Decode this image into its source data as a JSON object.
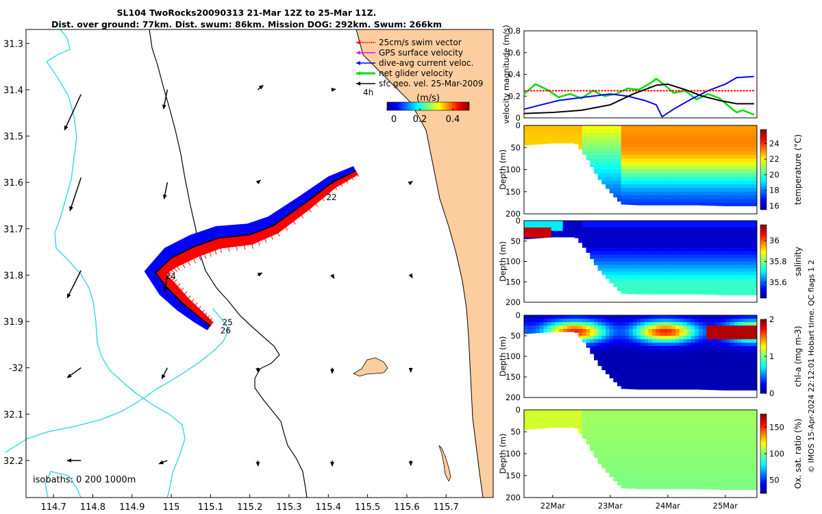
{
  "header": {
    "title_line1": "SL104 TwoRocks20090313 21-Mar 12Z to 25-Mar 11Z.",
    "title_line2": "Dist. over ground: 77km. Dist. swum: 86km. Mission DOG: 292km. Swum: 266km"
  },
  "credit": "© IMOS 15-Apr-2024 22:12:01 Hobart time. QC flags 1  2",
  "colors": {
    "land": "#fbcd9f",
    "swim": "#ff0000",
    "current": "#0000ff",
    "net": "#00dd00",
    "isobath": "#3ddbe0",
    "track": "#000000"
  },
  "chart_data": [
    {
      "type": "map",
      "name": "glider-track-map",
      "xlim": [
        114.63,
        115.82
      ],
      "ylim": [
        -32.28,
        -31.27
      ],
      "xticks": [
        114.7,
        114.8,
        114.9,
        115,
        115.1,
        115.2,
        115.3,
        115.4,
        115.5,
        115.6,
        115.7
      ],
      "yticks": [
        -31.3,
        -31.4,
        -31.5,
        -31.6,
        -31.7,
        -31.8,
        -31.9,
        -32,
        -32.1,
        -32.2
      ],
      "xtick_labels": [
        "114.7",
        "114.8",
        "114.9",
        "115",
        "115.1",
        "115.2",
        "115.3",
        "115.4",
        "115.5",
        "115.6",
        "115.7"
      ],
      "ytick_labels": [
        "31.3",
        "31.4",
        "31.5",
        "31.6",
        "31.7",
        "31.8",
        "31.9",
        "-32",
        "32.1",
        "32.2"
      ],
      "legend": [
        {
          "label": "25cm/s swim vector",
          "color": "#ff0000"
        },
        {
          "label": "GPS surface velocity",
          "color": "#ff00ff"
        },
        {
          "label": "dive-avg current veloc.",
          "color": "#0000ff"
        },
        {
          "label": "net glider velocity",
          "color": "#00dd00"
        },
        {
          "label": "sfc geo. vel. 25-Mar-2009",
          "color": "#000000"
        }
      ],
      "time_label": "4h",
      "colorbar": {
        "label": "(m/s)",
        "ticks": [
          "0",
          "0.2",
          "0.4"
        ],
        "range": [
          0,
          0.5
        ]
      },
      "isobath_note": "isobaths: 0   200  1000m",
      "track": [
        [
          115.47,
          -31.575
        ],
        [
          115.41,
          -31.6
        ],
        [
          115.34,
          -31.645
        ],
        [
          115.26,
          -31.693
        ],
        [
          115.2,
          -31.713
        ],
        [
          115.12,
          -31.72
        ],
        [
          115.06,
          -31.738
        ],
        [
          115.0,
          -31.763
        ],
        [
          114.96,
          -31.795
        ],
        [
          114.99,
          -31.828
        ],
        [
          115.03,
          -31.862
        ],
        [
          115.07,
          -31.89
        ],
        [
          115.1,
          -31.91
        ]
      ],
      "day_labels": [
        {
          "text": "22",
          "lon": 115.395,
          "lat": -31.638
        },
        {
          "text": "24",
          "lon": 114.985,
          "lat": -31.808
        },
        {
          "text": "25",
          "lon": 115.13,
          "lat": -31.908
        },
        {
          "text": "26",
          "lon": 115.125,
          "lat": -31.926
        }
      ],
      "geo_vectors": [
        {
          "lon": 114.77,
          "lat": -31.41,
          "u": -0.03,
          "v": -0.065
        },
        {
          "lon": 114.77,
          "lat": -31.59,
          "u": -0.02,
          "v": -0.06
        },
        {
          "lon": 114.77,
          "lat": -31.79,
          "u": -0.025,
          "v": -0.05
        },
        {
          "lon": 114.77,
          "lat": -32.0,
          "u": -0.025,
          "v": -0.018
        },
        {
          "lon": 114.77,
          "lat": -32.2,
          "u": -0.025,
          "v": 0
        },
        {
          "lon": 114.99,
          "lat": -31.4,
          "u": -0.007,
          "v": -0.035
        },
        {
          "lon": 114.99,
          "lat": -31.6,
          "u": -0.006,
          "v": -0.03
        },
        {
          "lon": 114.99,
          "lat": -31.8,
          "u": -0.005,
          "v": -0.03
        },
        {
          "lon": 114.99,
          "lat": -32.0,
          "u": -0.01,
          "v": -0.02
        },
        {
          "lon": 114.99,
          "lat": -32.2,
          "u": -0.015,
          "v": -0.006
        },
        {
          "lon": 115.22,
          "lat": -31.4,
          "u": 0.01,
          "v": 0.008
        },
        {
          "lon": 115.22,
          "lat": -31.6,
          "u": 0.005,
          "v": 0.004
        },
        {
          "lon": 115.22,
          "lat": -31.8,
          "u": 0.008,
          "v": 0.004
        },
        {
          "lon": 115.22,
          "lat": -32.0,
          "u": 0.001,
          "v": -0.008
        },
        {
          "lon": 115.22,
          "lat": -32.2,
          "u": 0.001,
          "v": -0.01
        },
        {
          "lon": 115.41,
          "lat": -31.4,
          "u": 0.006,
          "v": 0.001
        },
        {
          "lon": 115.41,
          "lat": -31.6,
          "u": 0.005,
          "v": 0.003
        },
        {
          "lon": 115.41,
          "lat": -31.8,
          "u": 0.003,
          "v": -0.006
        },
        {
          "lon": 115.41,
          "lat": -32.0,
          "u": 0,
          "v": -0.01
        },
        {
          "lon": 115.41,
          "lat": -32.2,
          "u": 0,
          "v": -0.01
        },
        {
          "lon": 115.61,
          "lat": -31.6,
          "u": 0.003,
          "v": 0.002
        },
        {
          "lon": 115.61,
          "lat": -31.8,
          "u": 0.003,
          "v": -0.005
        },
        {
          "lon": 115.61,
          "lat": -32.0,
          "u": 0,
          "v": -0.008
        },
        {
          "lon": 115.61,
          "lat": -32.2,
          "u": 0,
          "v": -0.009
        }
      ]
    },
    {
      "type": "line",
      "name": "velocity-magnitude",
      "ylabel": "velocity magnitude (m/s)",
      "ylim": [
        0,
        0.8
      ],
      "yticks": [
        0,
        0.2,
        0.4,
        0.6,
        0.8
      ],
      "xlim": [
        21.5,
        25.55
      ],
      "series": [
        {
          "name": "net glider velocity",
          "color": "#00dd00",
          "x": [
            21.5,
            21.7,
            21.9,
            22.1,
            22.3,
            22.5,
            22.7,
            22.9,
            23.1,
            23.3,
            23.5,
            23.7,
            23.8,
            23.95,
            24.1,
            24.3,
            24.5,
            24.7,
            24.9,
            25.1,
            25.2,
            25.3,
            25.5
          ],
          "y": [
            0.22,
            0.31,
            0.26,
            0.19,
            0.22,
            0.18,
            0.25,
            0.2,
            0.22,
            0.27,
            0.26,
            0.32,
            0.36,
            0.3,
            0.23,
            0.25,
            0.17,
            0.22,
            0.18,
            0.09,
            0.05,
            0.07,
            0.03
          ]
        },
        {
          "name": "dive-avg current veloc.",
          "color": "#0000ff",
          "x": [
            21.5,
            21.8,
            22.1,
            22.4,
            22.7,
            23.0,
            23.3,
            23.6,
            23.8,
            23.9,
            24.1,
            24.4,
            24.7,
            25.0,
            25.2,
            25.5
          ],
          "y": [
            0.08,
            0.12,
            0.16,
            0.18,
            0.2,
            0.22,
            0.2,
            0.16,
            0.12,
            0.01,
            0.08,
            0.17,
            0.25,
            0.31,
            0.37,
            0.38
          ]
        },
        {
          "name": "swim speed",
          "color": "#ff0000",
          "x": [
            21.5,
            25.5
          ],
          "y": [
            0.25,
            0.25
          ]
        },
        {
          "name": "sfc geo. vel.",
          "color": "#000000",
          "x": [
            21.5,
            22.0,
            22.5,
            23.0,
            23.4,
            23.8,
            24.0,
            24.3,
            24.6,
            24.9,
            25.2,
            25.5
          ],
          "y": [
            0.04,
            0.05,
            0.07,
            0.12,
            0.22,
            0.3,
            0.31,
            0.26,
            0.2,
            0.16,
            0.13,
            0.13
          ]
        }
      ]
    },
    {
      "type": "heatmap",
      "name": "temperature-section",
      "ylabel": "Depth (m)",
      "colorbar_label": "temperature (°C)",
      "ylim": [
        0,
        200
      ],
      "yticks": [
        0,
        50,
        100,
        150,
        200
      ],
      "clim": [
        15.5,
        25.8
      ],
      "cticks": [
        "16",
        "18",
        "20",
        "22",
        "24"
      ],
      "cmap": "jet",
      "bottom_depth": [
        [
          21.5,
          45
        ],
        [
          22.0,
          40
        ],
        [
          22.4,
          40
        ],
        [
          22.6,
          75
        ],
        [
          22.8,
          120
        ],
        [
          23.0,
          150
        ],
        [
          23.2,
          178
        ],
        [
          23.5,
          180
        ],
        [
          24.5,
          180
        ],
        [
          25.0,
          182
        ],
        [
          25.55,
          182
        ]
      ],
      "field": {
        "surface": 22.0,
        "deep": 17.2,
        "warm_core": {
          "x": [
            23.2,
            25.5
          ],
          "value": 24.5
        }
      }
    },
    {
      "type": "heatmap",
      "name": "salinity-section",
      "ylabel": "Depth (m)",
      "colorbar_label": "salinity",
      "ylim": [
        0,
        200
      ],
      "yticks": [
        0,
        50,
        100,
        150,
        200
      ],
      "clim": [
        35.45,
        36.15
      ],
      "cticks": [
        "35.6",
        "35.8",
        "36"
      ],
      "cmap": "jet",
      "bottom_depth": [
        [
          21.5,
          45
        ],
        [
          22.0,
          40
        ],
        [
          22.4,
          40
        ],
        [
          22.6,
          75
        ],
        [
          22.8,
          120
        ],
        [
          23.0,
          150
        ],
        [
          23.2,
          178
        ],
        [
          23.5,
          180
        ],
        [
          24.5,
          180
        ],
        [
          25.0,
          182
        ],
        [
          25.55,
          182
        ]
      ],
      "field": {
        "surface": 35.5,
        "deep": 35.75,
        "high_patch": {
          "x": [
            21.5,
            22.0
          ],
          "value": 36.1
        }
      }
    },
    {
      "type": "heatmap",
      "name": "chlorophyll-section",
      "ylabel": "Depth (m)",
      "colorbar_label": "chl-a (mg m-3)",
      "ylim": [
        0,
        200
      ],
      "yticks": [
        0,
        50,
        100,
        150,
        200
      ],
      "clim": [
        0,
        2
      ],
      "cticks": [
        "0",
        "1",
        "2"
      ],
      "cmap": "jet",
      "bottom_depth": [
        [
          21.5,
          45
        ],
        [
          22.0,
          40
        ],
        [
          22.4,
          40
        ],
        [
          22.6,
          75
        ],
        [
          22.8,
          120
        ],
        [
          23.0,
          150
        ],
        [
          23.2,
          178
        ],
        [
          23.5,
          180
        ],
        [
          24.5,
          180
        ],
        [
          25.0,
          182
        ],
        [
          25.55,
          182
        ]
      ],
      "field": {
        "surface": 0.6,
        "max_layer_depth": 40,
        "max_value": 1.7,
        "deep": 0.1
      }
    },
    {
      "type": "heatmap",
      "name": "oxygen-section",
      "ylabel": "Depth (m)",
      "colorbar_label": "Ox. sat. ratio (%)",
      "ylim": [
        0,
        200
      ],
      "yticks": [
        0,
        50,
        100,
        150,
        200
      ],
      "clim": [
        25,
        175
      ],
      "cticks": [
        "50",
        "100",
        "150"
      ],
      "cmap": "jet",
      "xticks": [
        22,
        23,
        24,
        25
      ],
      "xtick_labels": [
        "22Mar",
        "23Mar",
        "24Mar",
        "25Mar"
      ],
      "bottom_depth": [
        [
          21.5,
          45
        ],
        [
          22.0,
          40
        ],
        [
          22.4,
          40
        ],
        [
          22.6,
          75
        ],
        [
          22.8,
          120
        ],
        [
          23.0,
          150
        ],
        [
          23.2,
          178
        ],
        [
          23.5,
          180
        ],
        [
          24.5,
          180
        ],
        [
          25.0,
          182
        ],
        [
          25.55,
          182
        ]
      ],
      "field": {
        "surface": 110,
        "deep": 100
      }
    }
  ]
}
